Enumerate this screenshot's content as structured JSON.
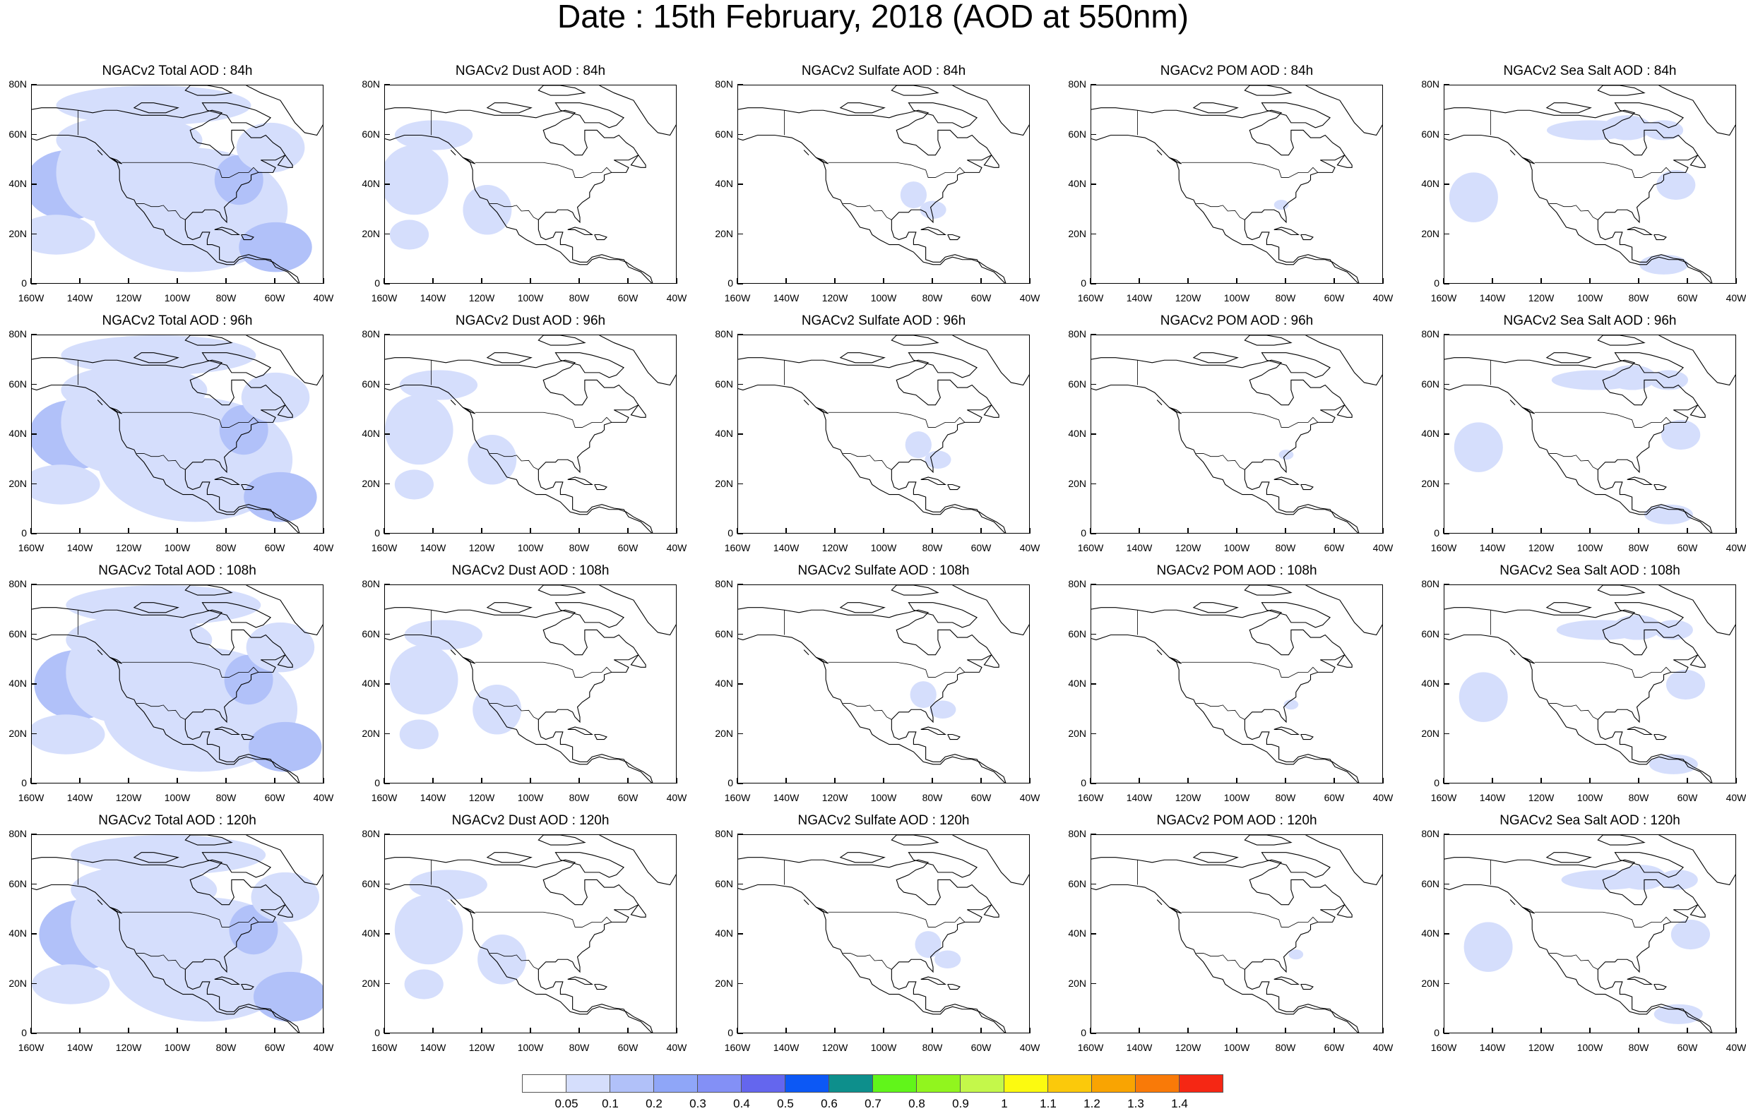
{
  "title": "Date : 15th February, 2018 (AOD at 550nm)",
  "chart_data": {
    "type": "heatmap",
    "grid": {
      "rows": [
        "84h",
        "96h",
        "108h",
        "120h"
      ],
      "columns": [
        "Total",
        "Dust",
        "Sulfate",
        "POM",
        "Sea Salt"
      ]
    },
    "panels": [
      {
        "title": "NGACv2 Total AOD : 84h",
        "species": "Total",
        "forecast_hour": 84,
        "coverage": "high"
      },
      {
        "title": "NGACv2 Dust AOD : 84h",
        "species": "Dust",
        "forecast_hour": 84,
        "coverage": "medium"
      },
      {
        "title": "NGACv2 Sulfate AOD : 84h",
        "species": "Sulfate",
        "forecast_hour": 84,
        "coverage": "low"
      },
      {
        "title": "NGACv2 POM AOD : 84h",
        "species": "POM",
        "forecast_hour": 84,
        "coverage": "very-low"
      },
      {
        "title": "NGACv2 Sea Salt AOD : 84h",
        "species": "Sea Salt",
        "forecast_hour": 84,
        "coverage": "medium"
      },
      {
        "title": "NGACv2 Total AOD : 96h",
        "species": "Total",
        "forecast_hour": 96,
        "coverage": "high"
      },
      {
        "title": "NGACv2 Dust AOD : 96h",
        "species": "Dust",
        "forecast_hour": 96,
        "coverage": "medium"
      },
      {
        "title": "NGACv2 Sulfate AOD : 96h",
        "species": "Sulfate",
        "forecast_hour": 96,
        "coverage": "low"
      },
      {
        "title": "NGACv2 POM AOD : 96h",
        "species": "POM",
        "forecast_hour": 96,
        "coverage": "very-low"
      },
      {
        "title": "NGACv2 Sea Salt AOD : 96h",
        "species": "Sea Salt",
        "forecast_hour": 96,
        "coverage": "medium"
      },
      {
        "title": "NGACv2 Total AOD : 108h",
        "species": "Total",
        "forecast_hour": 108,
        "coverage": "high"
      },
      {
        "title": "NGACv2 Dust AOD : 108h",
        "species": "Dust",
        "forecast_hour": 108,
        "coverage": "medium"
      },
      {
        "title": "NGACv2 Sulfate AOD : 108h",
        "species": "Sulfate",
        "forecast_hour": 108,
        "coverage": "low"
      },
      {
        "title": "NGACv2 POM AOD : 108h",
        "species": "POM",
        "forecast_hour": 108,
        "coverage": "very-low"
      },
      {
        "title": "NGACv2 Sea Salt AOD : 108h",
        "species": "Sea Salt",
        "forecast_hour": 108,
        "coverage": "medium"
      },
      {
        "title": "NGACv2 Total AOD : 120h",
        "species": "Total",
        "forecast_hour": 120,
        "coverage": "high"
      },
      {
        "title": "NGACv2 Dust AOD : 120h",
        "species": "Dust",
        "forecast_hour": 120,
        "coverage": "medium"
      },
      {
        "title": "NGACv2 Sulfate AOD : 120h",
        "species": "Sulfate",
        "forecast_hour": 120,
        "coverage": "low"
      },
      {
        "title": "NGACv2 POM AOD : 120h",
        "species": "POM",
        "forecast_hour": 120,
        "coverage": "very-low"
      },
      {
        "title": "NGACv2 Sea Salt  AOD : 120h",
        "species": "Sea Salt",
        "forecast_hour": 120,
        "coverage": "medium"
      }
    ],
    "x_ticks": [
      "160W",
      "140W",
      "120W",
      "100W",
      "80W",
      "60W",
      "40W"
    ],
    "y_ticks": [
      "0",
      "20N",
      "40N",
      "60N",
      "80N"
    ],
    "xlim": [
      -160,
      -40
    ],
    "ylim": [
      0,
      80
    ],
    "colorbar": {
      "levels": [
        "0.05",
        "0.1",
        "0.2",
        "0.3",
        "0.4",
        "0.5",
        "0.6",
        "0.7",
        "0.8",
        "0.9",
        "1",
        "1.1",
        "1.2",
        "1.3",
        "1.4"
      ],
      "colors": [
        "#ffffff",
        "#d5defc",
        "#b1c1f9",
        "#8fa6f8",
        "#8390f6",
        "#6466ee",
        "#0c58f5",
        "#0d8f8c",
        "#61f51a",
        "#91f51e",
        "#c4f84a",
        "#fcfa10",
        "#fbc90b",
        "#f9a402",
        "#f97a08",
        "#f52714"
      ]
    },
    "grid_lines": false,
    "legend": "bottom"
  }
}
